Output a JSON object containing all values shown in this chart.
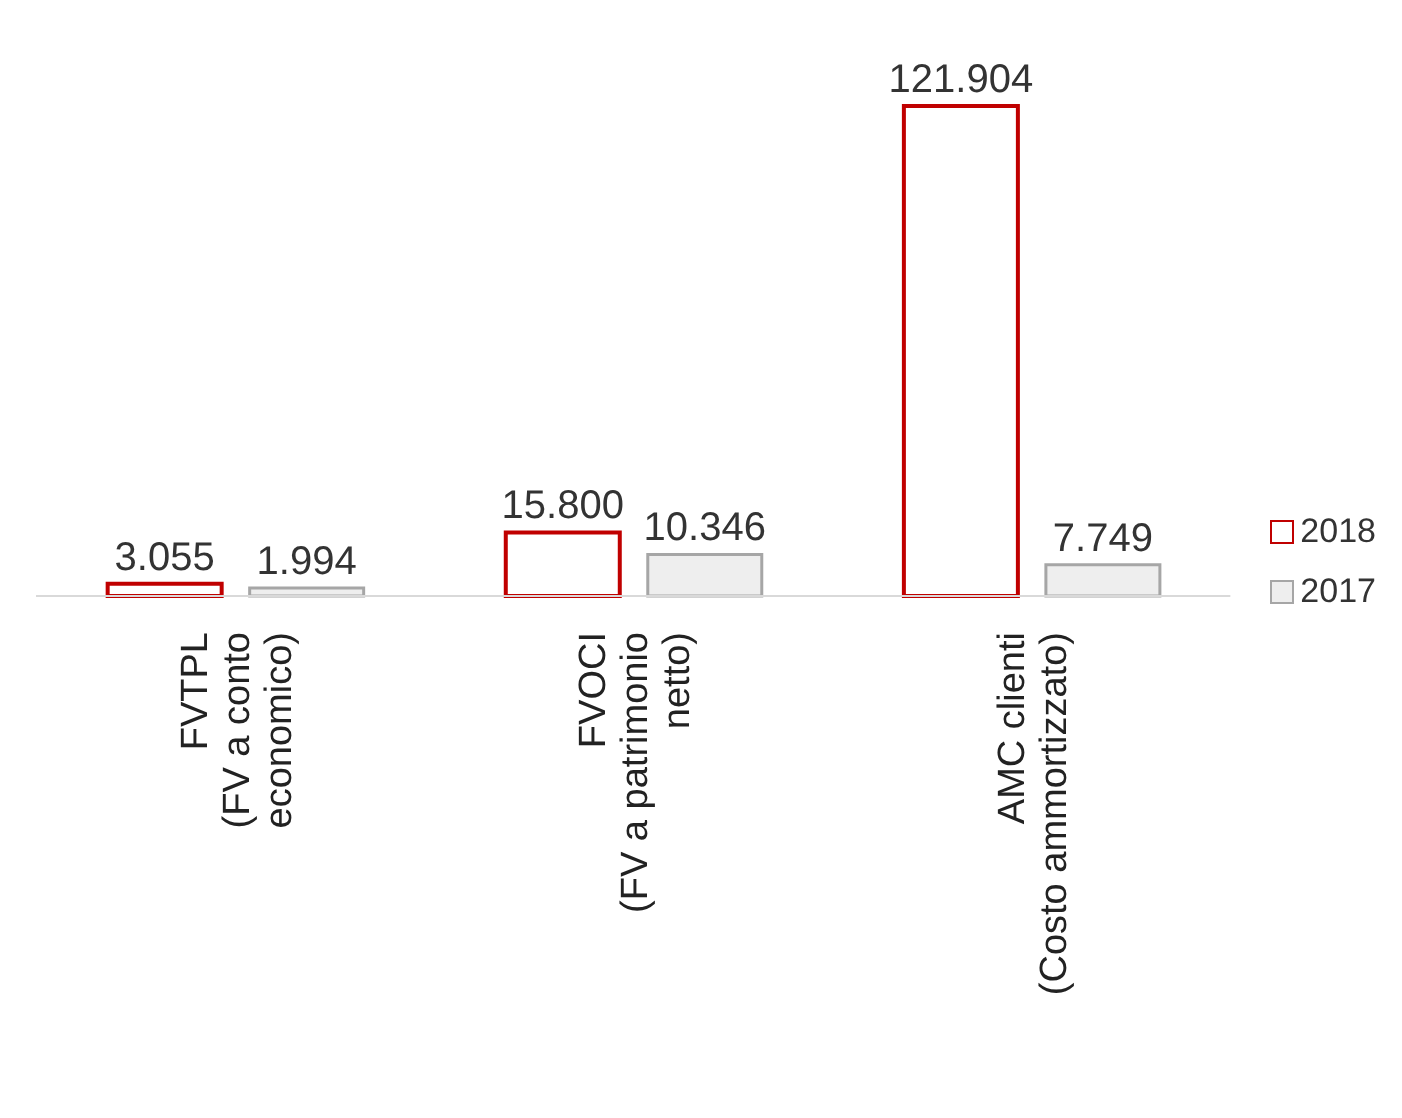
{
  "chart_data": {
    "type": "bar",
    "categories": [
      "FVTPL\n(FV a conto\neconomico)",
      "FVOCI\n(FV a patrimonio\nnetto)",
      "AMC clienti\n(Costo ammortizzato)"
    ],
    "series": [
      {
        "name": "2018",
        "color": "#c00000",
        "values": [
          3055,
          15800,
          121904
        ],
        "value_labels": [
          "3.055",
          "15.800",
          "121.904"
        ]
      },
      {
        "name": "2017",
        "color": "#a6a6a6",
        "values": [
          1994,
          10346,
          7749
        ],
        "value_labels": [
          "1.994",
          "10.346",
          "7.749"
        ]
      }
    ],
    "legend": "right"
  }
}
